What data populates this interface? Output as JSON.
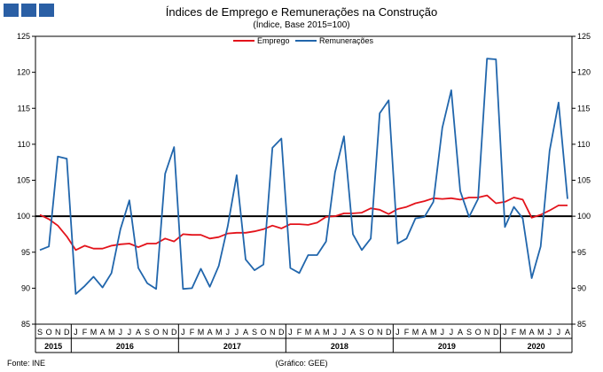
{
  "logo": {
    "squares": 3,
    "color": "#2a5fa5"
  },
  "footer": {
    "source": "Fonte: INE",
    "credit": "(Gráfico: GEE)"
  },
  "chart_data": {
    "type": "line",
    "title": "Índices de Emprego e Remunerações na Construção",
    "subtitle": "(Índice, Base 2015=100)",
    "ylim": [
      85,
      125
    ],
    "yticks": [
      85,
      90,
      95,
      100,
      105,
      110,
      115,
      120,
      125
    ],
    "reference_line": 100,
    "legend_position": "top-center",
    "months": [
      "S",
      "O",
      "N",
      "D",
      "J",
      "F",
      "M",
      "A",
      "M",
      "J",
      "J",
      "A",
      "S",
      "O",
      "N",
      "D",
      "J",
      "F",
      "M",
      "A",
      "M",
      "J",
      "J",
      "A",
      "S",
      "O",
      "N",
      "D",
      "J",
      "F",
      "M",
      "A",
      "M",
      "J",
      "J",
      "A",
      "S",
      "O",
      "N",
      "D",
      "J",
      "F",
      "M",
      "A",
      "M",
      "J",
      "J",
      "A",
      "S",
      "O",
      "N",
      "D",
      "J",
      "F",
      "M",
      "A",
      "M",
      "J",
      "J",
      "A"
    ],
    "years": [
      {
        "label": "2015",
        "start": 0,
        "end": 3
      },
      {
        "label": "2016",
        "start": 4,
        "end": 15
      },
      {
        "label": "2017",
        "start": 16,
        "end": 27
      },
      {
        "label": "2018",
        "start": 28,
        "end": 39
      },
      {
        "label": "2019",
        "start": 40,
        "end": 51
      },
      {
        "label": "2020",
        "start": 52,
        "end": 59
      }
    ],
    "series": [
      {
        "name": "Emprego",
        "color": "#e3131b",
        "values": [
          100.2,
          99.6,
          98.7,
          97.2,
          95.3,
          95.9,
          95.5,
          95.5,
          95.9,
          96.1,
          96.2,
          95.7,
          96.2,
          96.2,
          96.9,
          96.5,
          97.5,
          97.4,
          97.4,
          96.9,
          97.1,
          97.6,
          97.7,
          97.7,
          97.9,
          98.2,
          98.7,
          98.3,
          98.9,
          98.9,
          98.8,
          99.1,
          99.9,
          100.0,
          100.4,
          100.4,
          100.5,
          101.1,
          100.9,
          100.3,
          101.0,
          101.3,
          101.8,
          102.1,
          102.5,
          102.4,
          102.5,
          102.3,
          102.6,
          102.6,
          102.9,
          101.8,
          102.0,
          102.6,
          102.3,
          99.8,
          100.2,
          100.8,
          101.5,
          101.5
        ]
      },
      {
        "name": "Remunerações",
        "color": "#2166ac",
        "values": [
          95.3,
          95.8,
          108.3,
          108.0,
          89.2,
          90.3,
          91.6,
          90.1,
          92.1,
          98.2,
          102.2,
          92.8,
          90.7,
          89.9,
          105.9,
          109.6,
          89.9,
          90.0,
          92.7,
          90.2,
          93.1,
          98.6,
          105.7,
          94.0,
          92.5,
          93.3,
          109.5,
          110.8,
          92.8,
          92.1,
          94.6,
          94.6,
          96.5,
          106.1,
          111.1,
          97.5,
          95.3,
          96.9,
          114.3,
          116.1,
          96.2,
          96.9,
          99.7,
          99.9,
          102.0,
          112.3,
          117.5,
          103.5,
          99.9,
          102.4,
          121.9,
          121.8,
          98.5,
          101.3,
          99.7,
          91.4,
          95.8,
          109.1,
          115.8,
          102.4
        ]
      }
    ]
  }
}
